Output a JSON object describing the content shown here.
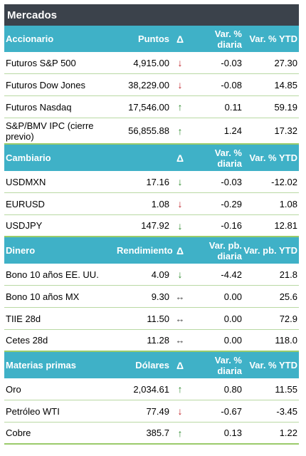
{
  "title": "Mercados",
  "colors": {
    "header_bg": "#3fb1c7",
    "title_bg": "#3b424b",
    "up": "#2e8b2e",
    "down": "#c0262d"
  },
  "sections": [
    {
      "headers": [
        "Accionario",
        "Puntos",
        "Δ",
        "Var. % diaria",
        "Var. % YTD"
      ],
      "rows": [
        {
          "name": "Futuros S&P 500",
          "value": "4,915.00",
          "arrow": "↓",
          "arrow_color": "down",
          "daily": "-0.03",
          "ytd": "27.30"
        },
        {
          "name": "Futuros Dow Jones",
          "value": "38,229.00",
          "arrow": "↓",
          "arrow_color": "down",
          "daily": "-0.08",
          "ytd": "14.85"
        },
        {
          "name": "Futuros Nasdaq",
          "value": "17,546.00",
          "arrow": "↑",
          "arrow_color": "up",
          "daily": "0.11",
          "ytd": "59.19"
        },
        {
          "name": "S&P/BMV IPC (cierre previo)",
          "value": "56,855.88",
          "arrow": "↑",
          "arrow_color": "up",
          "daily": "1.24",
          "ytd": "17.32"
        }
      ]
    },
    {
      "headers": [
        "Cambiario",
        "",
        "Δ",
        "Var. % diaria",
        "Var. % YTD"
      ],
      "rows": [
        {
          "name": "USDMXN",
          "value": "17.16",
          "arrow": "↓",
          "arrow_color": "up",
          "daily": "-0.03",
          "ytd": "-12.02"
        },
        {
          "name": "EURUSD",
          "value": "1.08",
          "arrow": "↓",
          "arrow_color": "down",
          "daily": "-0.29",
          "ytd": "1.08"
        },
        {
          "name": "USDJPY",
          "value": "147.92",
          "arrow": "↓",
          "arrow_color": "up",
          "daily": "-0.16",
          "ytd": "12.81"
        }
      ]
    },
    {
      "headers": [
        "Dinero",
        "Rendimiento",
        "Δ",
        "Var. pb. diaria",
        "Var. pb. YTD"
      ],
      "rows": [
        {
          "name": "Bono 10 años EE. UU.",
          "value": "4.09",
          "arrow": "↓",
          "arrow_color": "up",
          "daily": "-4.42",
          "ytd": "21.8"
        },
        {
          "name": "Bono 10 años MX",
          "value": "9.30",
          "arrow": "↔",
          "arrow_color": "flat",
          "daily": "0.00",
          "ytd": "25.6"
        },
        {
          "name": "TIIE 28d",
          "value": "11.50",
          "arrow": "↔",
          "arrow_color": "flat",
          "daily": "0.00",
          "ytd": "72.9"
        },
        {
          "name": "Cetes 28d",
          "value": "11.28",
          "arrow": "↔",
          "arrow_color": "flat",
          "daily": "0.00",
          "ytd": "118.0"
        }
      ]
    },
    {
      "headers": [
        "Materias primas",
        "Dólares",
        "Δ",
        "Var. % diaria",
        "Var. % YTD"
      ],
      "rows": [
        {
          "name": "Oro",
          "value": "2,034.61",
          "arrow": "↑",
          "arrow_color": "up",
          "daily": "0.80",
          "ytd": "11.55"
        },
        {
          "name": "Petróleo WTI",
          "value": "77.49",
          "arrow": "↓",
          "arrow_color": "down",
          "daily": "-0.67",
          "ytd": "-3.45"
        },
        {
          "name": "Cobre",
          "value": "385.7",
          "arrow": "↑",
          "arrow_color": "up",
          "daily": "0.13",
          "ytd": "1.22"
        }
      ]
    }
  ]
}
